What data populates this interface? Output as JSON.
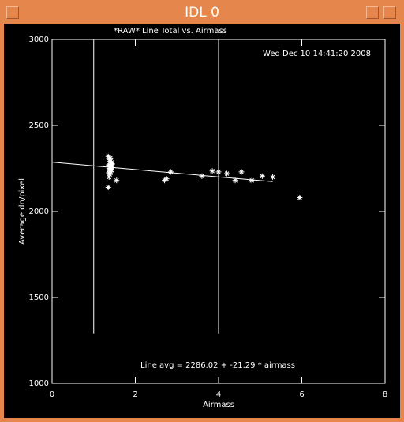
{
  "window": {
    "title": "IDL 0"
  },
  "chart_data": {
    "type": "scatter",
    "title": "*RAW* Line Total vs. Airmass",
    "timestamp": "Wed Dec 10 14:41:20 2008",
    "annotation": "Line avg = 2286.02 + -21.29 * airmass",
    "x_label": "Airmass",
    "y_label": "Average dn/pixel",
    "xlim": [
      0,
      8
    ],
    "xticks": [
      0,
      2,
      4,
      6,
      8
    ],
    "ylim": [
      1000,
      3000
    ],
    "yticks": [
      1000,
      1500,
      2000,
      2500,
      3000
    ],
    "series": [
      {
        "color": "#ffffff",
        "x": [
          1.35,
          1.38,
          1.4,
          1.42,
          1.36,
          1.39,
          1.41,
          1.44,
          1.37,
          1.4,
          1.43,
          1.38,
          1.41,
          1.36,
          1.39,
          1.42,
          1.45,
          1.4,
          1.37,
          1.43,
          1.35,
          1.55,
          2.7,
          2.75,
          2.85,
          3.6,
          3.85,
          4.0,
          4.2,
          4.4,
          4.55,
          4.8,
          5.05,
          5.3,
          5.95
        ],
        "values": [
          2320,
          2300,
          2290,
          2280,
          2270,
          2265,
          2260,
          2255,
          2250,
          2245,
          2240,
          2235,
          2230,
          2225,
          2215,
          2270,
          2275,
          2310,
          2200,
          2285,
          2140,
          2180,
          2180,
          2190,
          2230,
          2205,
          2235,
          2230,
          2220,
          2180,
          2230,
          2180,
          2205,
          2200,
          2080
        ]
      }
    ],
    "fit_line": {
      "x": [
        0,
        5.3
      ],
      "values": [
        2286,
        2173
      ]
    },
    "vertical_lines": {
      "x": [
        1,
        4
      ],
      "ylim": [
        1290,
        3000
      ]
    }
  }
}
